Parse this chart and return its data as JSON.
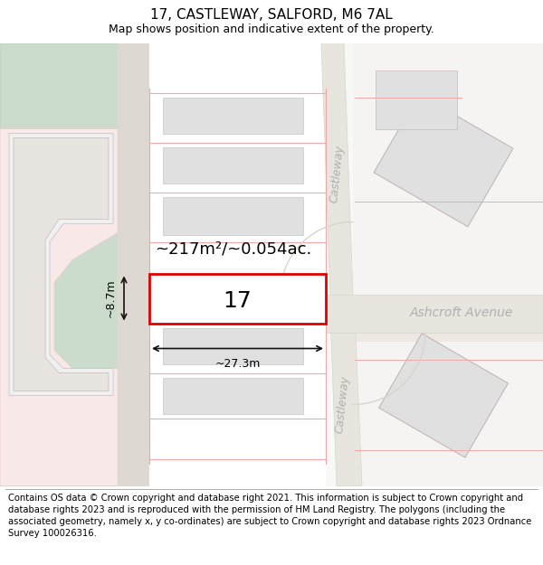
{
  "title": "17, CASTLEWAY, SALFORD, M6 7AL",
  "subtitle": "Map shows position and indicative extent of the property.",
  "footer": "Contains OS data © Crown copyright and database right 2021. This information is subject to Crown copyright and database rights 2023 and is reproduced with the permission of\nHM Land Registry. The polygons (including the associated geometry, namely x, y co-ordinates) are subject to Crown copyright and database rights 2023 Ordnance Survey\n100026316.",
  "bg_color": "#f7f7f5",
  "map_bg": "#ffffff",
  "green_color": "#ccdccc",
  "green_edge": "#b8ccb8",
  "road_fill": "#e8e4de",
  "road_gray": "#d8d4ce",
  "building_fill": "#e0e0e0",
  "building_edge": "#c8c8c8",
  "plot_fill": "#ffffff",
  "plot_edge": "#e00000",
  "plot_lw": 2.0,
  "boundary_color": "#f0a8a8",
  "boundary_lw": 0.8,
  "dim_color": "#111111",
  "label_color": "#111111",
  "street_color": "#b0b0b0",
  "avenue_color": "#b0b0b0",
  "pink_fill": "#f8e8e8",
  "area_text": "~217m²/~0.054ac.",
  "width_text": "~27.3m",
  "height_text": "~8.7m",
  "number_text": "17",
  "street_text": "Castleway",
  "avenue_text": "Ashcroft Avenue",
  "title_fs": 11,
  "subtitle_fs": 9,
  "footer_fs": 7.2,
  "area_fs": 13,
  "dim_fs": 9,
  "number_fs": 18,
  "street_fs": 9,
  "avenue_fs": 10
}
